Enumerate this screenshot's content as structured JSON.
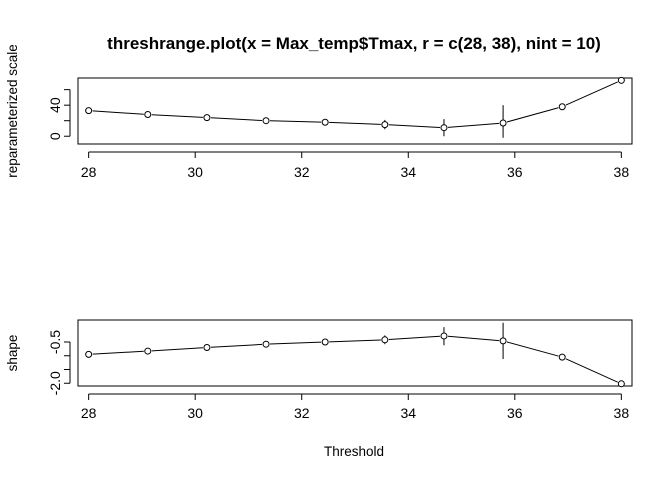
{
  "title": "threshrange.plot(x = Max_temp$Tmax, r = c(28, 38), nint = 10)",
  "xlabel": "Threshold",
  "chart_data": [
    {
      "type": "line",
      "ylabel": "reparameterized scale",
      "xlim": [
        27.8,
        38.2
      ],
      "ylim": [
        -10,
        75
      ],
      "xticks": [
        "28",
        "30",
        "32",
        "34",
        "36",
        "38"
      ],
      "yticks": [
        "0",
        "40"
      ],
      "grid": false,
      "x": [
        28,
        29.11,
        30.22,
        31.33,
        32.44,
        33.56,
        34.67,
        35.78,
        36.89,
        38
      ],
      "values": [
        33,
        28,
        24,
        20,
        18,
        15,
        11,
        17,
        38,
        72
      ],
      "ci_low": [
        31,
        26,
        22,
        17,
        15,
        9,
        0,
        -2,
        36,
        70
      ],
      "ci_high": [
        35,
        30,
        26,
        23,
        21,
        21,
        22,
        40,
        40,
        74
      ]
    },
    {
      "type": "line",
      "ylabel": "shape",
      "xlim": [
        27.8,
        38.2
      ],
      "ylim": [
        -2.1,
        0.3
      ],
      "xticks": [
        "28",
        "30",
        "32",
        "34",
        "36",
        "38"
      ],
      "yticks": [
        "-2.0",
        "-0.5"
      ],
      "grid": false,
      "x": [
        28,
        29.11,
        30.22,
        31.33,
        32.44,
        33.56,
        34.67,
        35.78,
        36.89,
        38
      ],
      "values": [
        -0.95,
        -0.83,
        -0.7,
        -0.58,
        -0.5,
        -0.42,
        -0.28,
        -0.46,
        -1.05,
        -2.02
      ],
      "ci_low": [
        -1.0,
        -0.9,
        -0.78,
        -0.66,
        -0.6,
        -0.58,
        -0.62,
        -1.12,
        -1.08,
        -2.05
      ],
      "ci_high": [
        -0.9,
        -0.76,
        -0.62,
        -0.5,
        -0.4,
        -0.26,
        0.04,
        0.2,
        -1.02,
        -1.99
      ]
    }
  ]
}
